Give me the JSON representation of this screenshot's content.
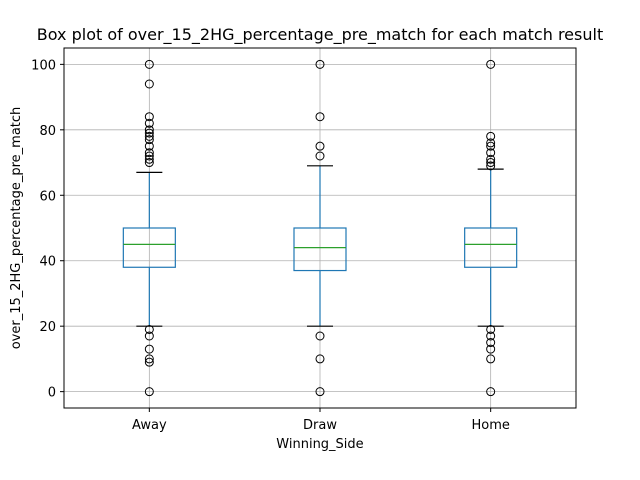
{
  "chart_data": {
    "type": "box",
    "title": "Box plot of over_15_2HG_percentage_pre_match for each match result",
    "xlabel": "Winning_Side",
    "ylabel": "over_15_2HG_percentage_pre_match",
    "ylim": [
      -5,
      105
    ],
    "yticks": [
      0,
      20,
      40,
      60,
      80,
      100
    ],
    "grid": true,
    "categories": [
      "Away",
      "Draw",
      "Home"
    ],
    "boxes": [
      {
        "category": "Away",
        "whisker_low": 20,
        "q1": 38,
        "median": 45,
        "q3": 50,
        "whisker_high": 67,
        "outliers": [
          0,
          9,
          10,
          13,
          17,
          19,
          70,
          71,
          72,
          73,
          75,
          77,
          78,
          79,
          80,
          82,
          84,
          94,
          100
        ]
      },
      {
        "category": "Draw",
        "whisker_low": 20,
        "q1": 37,
        "median": 44,
        "q3": 50,
        "whisker_high": 69,
        "outliers": [
          0,
          10,
          17,
          72,
          75,
          84,
          100
        ]
      },
      {
        "category": "Home",
        "whisker_low": 20,
        "q1": 38,
        "median": 45,
        "q3": 50,
        "whisker_high": 68,
        "outliers": [
          0,
          10,
          13,
          15,
          17,
          19,
          69,
          70,
          71,
          73,
          75,
          76,
          78,
          100
        ]
      }
    ],
    "colors": {
      "box": "#1f77b4",
      "median": "#2ca02c",
      "cap": "#000000",
      "outlier": "#000000",
      "grid": "#b0b0b0"
    }
  }
}
